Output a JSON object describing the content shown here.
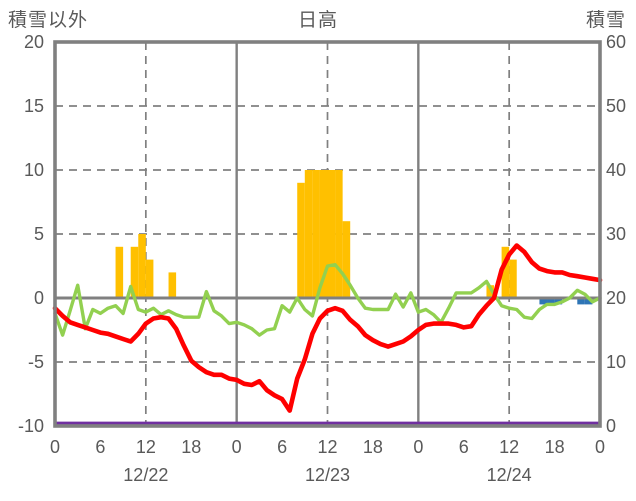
{
  "header": {
    "left_axis_title": "積雪以外",
    "station_title": "日高",
    "right_axis_title": "積雪"
  },
  "axes": {
    "left_ticks": [
      20,
      15,
      10,
      5,
      0,
      -5,
      -10
    ],
    "right_ticks": [
      60,
      50,
      40,
      30,
      20,
      10,
      0
    ],
    "x_hour_ticks": [
      0,
      6,
      12,
      18,
      0,
      6,
      12,
      18,
      0,
      6,
      12,
      18,
      0
    ],
    "date_labels": [
      "12/22",
      "12/23",
      "12/24"
    ],
    "left_range": [
      -10,
      20
    ],
    "right_range": [
      0,
      60
    ]
  },
  "colors": {
    "orange_bar": "#FFC000",
    "blue_bar": "#2E75B6",
    "red_line": "#FF0000",
    "green_line": "#92D050",
    "purple_line": "#7030A0",
    "grid": "#808080",
    "text": "#595959"
  },
  "chart_data": {
    "type": "combo",
    "title": "日高",
    "left_axis_label": "積雪以外",
    "right_axis_label": "積雪",
    "x_axis": "hour index 0-72 covering 12/22 00h - 12/25 00h, tick every 6h",
    "left_ylim": [
      -10,
      20
    ],
    "right_ylim": [
      0,
      60
    ],
    "grid": "dashed horizontal at 15/10/5/-5, dashed vertical at each 12h, solid vertical at each 0h, thick solid at 0",
    "series": [
      {
        "name": "orange-bars",
        "type": "bar",
        "axis": "left",
        "color": "#FFC000",
        "points": [
          [
            9,
            4
          ],
          [
            11,
            4
          ],
          [
            12,
            5
          ],
          [
            13,
            3
          ],
          [
            16,
            2
          ],
          [
            33,
            9
          ],
          [
            34,
            10
          ],
          [
            35,
            10
          ],
          [
            36,
            10
          ],
          [
            37,
            10
          ],
          [
            38,
            10
          ],
          [
            39,
            6
          ],
          [
            58,
            1
          ],
          [
            60,
            4
          ],
          [
            61,
            3
          ]
        ]
      },
      {
        "name": "blue-bars",
        "type": "bar",
        "axis": "left",
        "color": "#2E75B6",
        "points": [
          [
            65,
            -0.5
          ],
          [
            66,
            -0.5
          ],
          [
            67,
            -0.5
          ],
          [
            70,
            -0.5
          ],
          [
            71,
            -0.5
          ]
        ]
      },
      {
        "name": "purple-line",
        "type": "line",
        "axis": "left",
        "color": "#7030A0",
        "flat_value": -9.8
      },
      {
        "name": "green-line",
        "type": "line",
        "axis": "left",
        "color": "#92D050",
        "values": [
          -1.2,
          -2.9,
          -1.0,
          1.0,
          -2.4,
          -0.9,
          -1.2,
          -0.8,
          -0.6,
          -1.2,
          0.9,
          -0.9,
          -1.1,
          -0.8,
          -1.3,
          -1.0,
          -1.3,
          -1.5,
          -1.5,
          -1.5,
          0.5,
          -1.0,
          -1.4,
          -2.0,
          -1.9,
          -2.1,
          -2.4,
          -2.9,
          -2.5,
          -2.4,
          -0.6,
          -1.1,
          0.0,
          -0.9,
          -1.4,
          0.8,
          2.5,
          2.6,
          1.9,
          1.0,
          0.0,
          -0.8,
          -0.9,
          -0.9,
          -0.9,
          0.3,
          -0.7,
          0.4,
          -1.1,
          -0.9,
          -1.3,
          -1.9,
          -0.8,
          0.4,
          0.4,
          0.4,
          0.8,
          1.3,
          0.3,
          -0.6,
          -0.8,
          -0.9,
          -1.5,
          -1.6,
          -0.9,
          -0.5,
          -0.5,
          -0.3,
          0.0,
          0.6,
          0.3,
          -0.3,
          0.0
        ]
      },
      {
        "name": "red-line",
        "type": "line",
        "axis": "left",
        "color": "#FF0000",
        "values": [
          -0.8,
          -1.4,
          -1.9,
          -2.1,
          -2.3,
          -2.5,
          -2.7,
          -2.8,
          -3.0,
          -3.2,
          -3.4,
          -2.8,
          -2.0,
          -1.6,
          -1.5,
          -1.6,
          -2.4,
          -3.7,
          -4.9,
          -5.4,
          -5.8,
          -6.0,
          -6.0,
          -6.3,
          -6.4,
          -6.7,
          -6.8,
          -6.5,
          -7.2,
          -7.6,
          -7.9,
          -8.8,
          -6.3,
          -4.8,
          -2.8,
          -1.6,
          -1.0,
          -0.8,
          -1.0,
          -1.7,
          -2.2,
          -2.9,
          -3.3,
          -3.6,
          -3.8,
          -3.6,
          -3.4,
          -3.0,
          -2.5,
          -2.1,
          -2.0,
          -2.0,
          -2.0,
          -2.1,
          -2.3,
          -2.2,
          -1.3,
          -0.6,
          0.0,
          2.2,
          3.4,
          4.1,
          3.6,
          2.8,
          2.3,
          2.1,
          2.0,
          2.0,
          1.8,
          1.7,
          1.6,
          1.5,
          1.4
        ]
      }
    ]
  }
}
